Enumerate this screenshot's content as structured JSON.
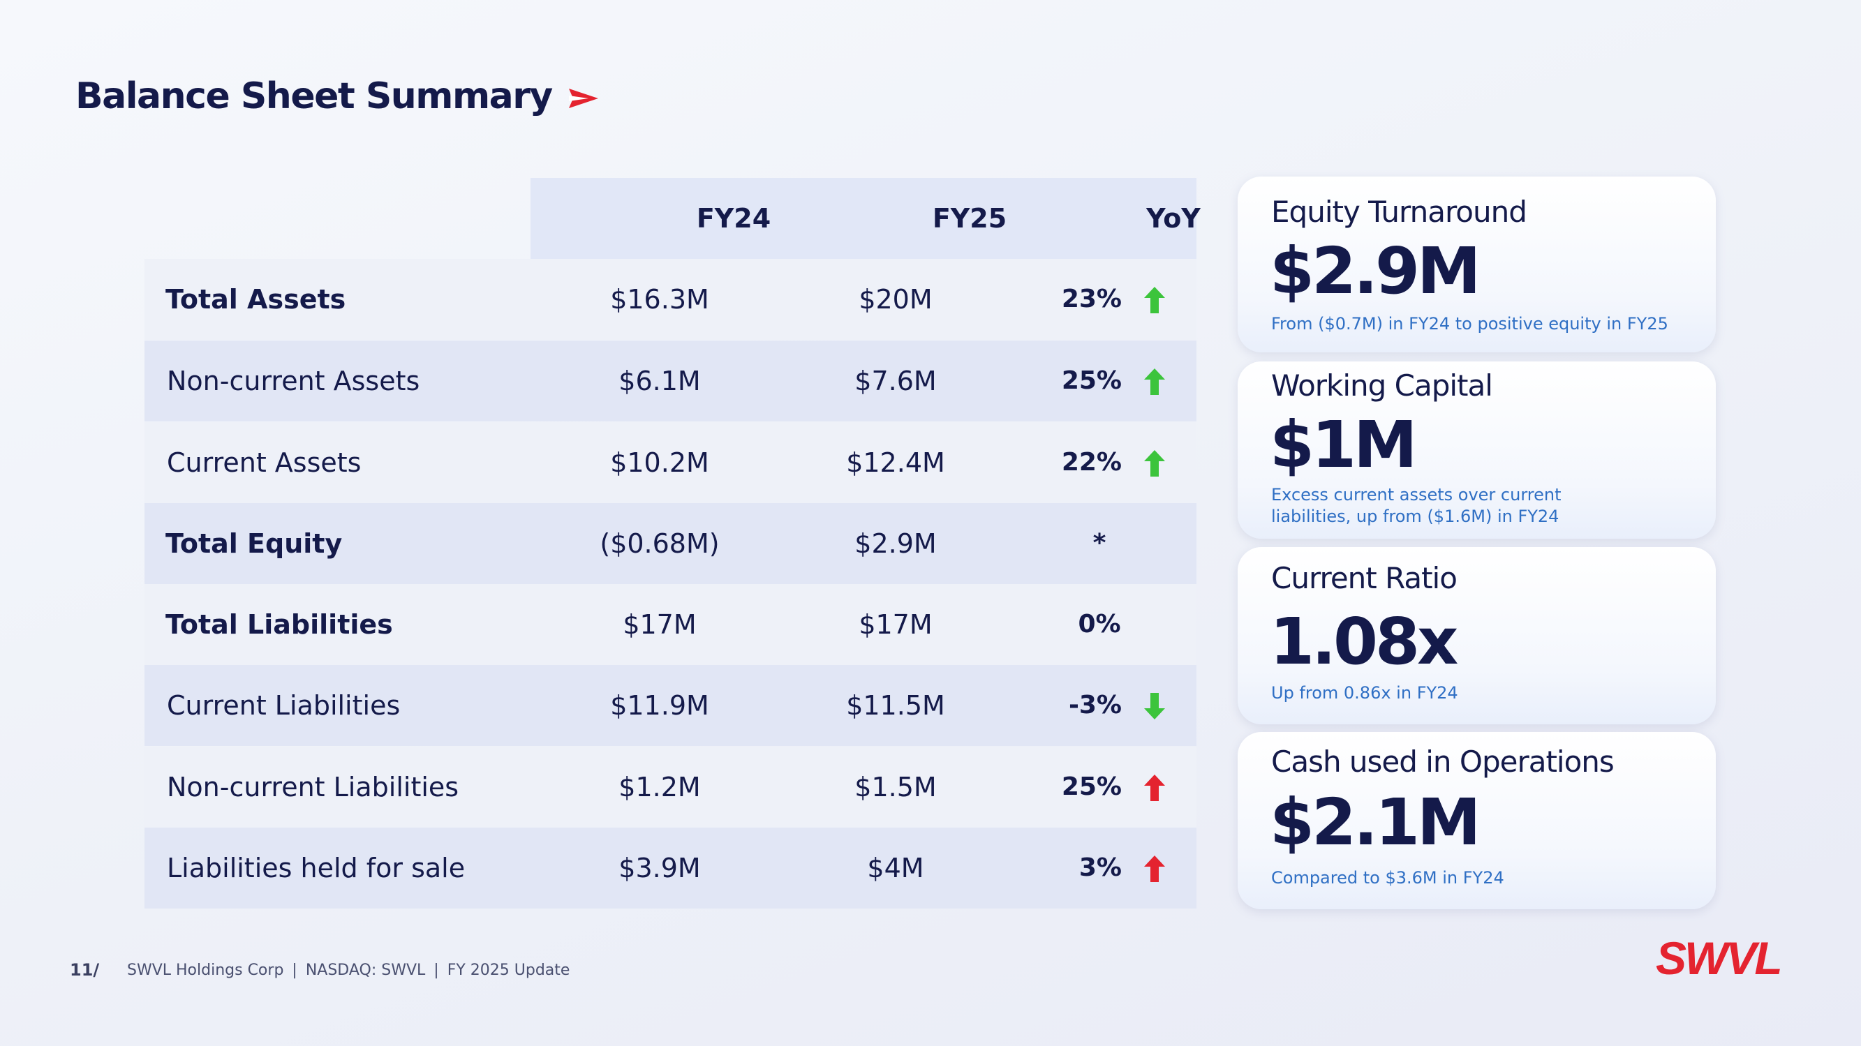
{
  "title": "Balance Sheet Summary",
  "table": {
    "headers": [
      "FY24",
      "FY25",
      "YoY"
    ],
    "rows": [
      {
        "label": "Total Assets",
        "fy24": "$16.3M",
        "fy25": "$20M",
        "yoy": "23%",
        "trend": "up"
      },
      {
        "label": "Non-current Assets",
        "fy24": "$6.1M",
        "fy25": "$7.6M",
        "yoy": "25%",
        "trend": "up"
      },
      {
        "label": "Current Assets",
        "fy24": "$10.2M",
        "fy25": "$12.4M",
        "yoy": "22%",
        "trend": "up"
      },
      {
        "label": "Total Equity",
        "fy24": "($0.68M)",
        "fy25": "$2.9M",
        "yoy": "*",
        "trend": "none"
      },
      {
        "label": "Total Liabilities",
        "fy24": "$17M",
        "fy25": "$17M",
        "yoy": "0%",
        "trend": "none"
      },
      {
        "label": "Current Liabilities",
        "fy24": "$11.9M",
        "fy25": "$11.5M",
        "yoy": "-3%",
        "trend": "down"
      },
      {
        "label": "Non-current Liabilities",
        "fy24": "$1.2M",
        "fy25": "$1.5M",
        "yoy": "25%",
        "trend": "up-red"
      },
      {
        "label": "Liabilities held for sale",
        "fy24": "$3.9M",
        "fy25": "$4M",
        "yoy": "3%",
        "trend": "up-red"
      }
    ]
  },
  "cards": [
    {
      "title": "Equity Turnaround",
      "value": "$2.9M",
      "subtitle": "From ($0.7M) in FY24 to positive equity in FY25"
    },
    {
      "title": "Working Capital",
      "value": "$1M",
      "subtitle": "Excess current assets over current liabilities, up from ($1.6M) in FY24"
    },
    {
      "title": "Current Ratio",
      "value": "1.08x",
      "subtitle": "Up from 0.86x in FY24"
    },
    {
      "title": "Cash used in Operations",
      "value": "$2.1M",
      "subtitle": "Compared to $3.6M in FY24"
    }
  ],
  "footer": {
    "page": "11/",
    "company": "SWVL Holdings Corp",
    "ticker": "NASDAQ: SWVL",
    "update": "FY 2025 Update",
    "separator": "|"
  },
  "logo": {
    "text": "SWVL",
    "icon": "swvl-logo"
  },
  "colors": {
    "navy": "#141a4a",
    "accent_red": "#e4232f",
    "up_green": "#3cc43c",
    "subtitle_blue": "#2f6fc4",
    "header_bg": "#e1e7f7",
    "row_light": "#eef1f8",
    "row_dark": "#e1e6f5"
  }
}
